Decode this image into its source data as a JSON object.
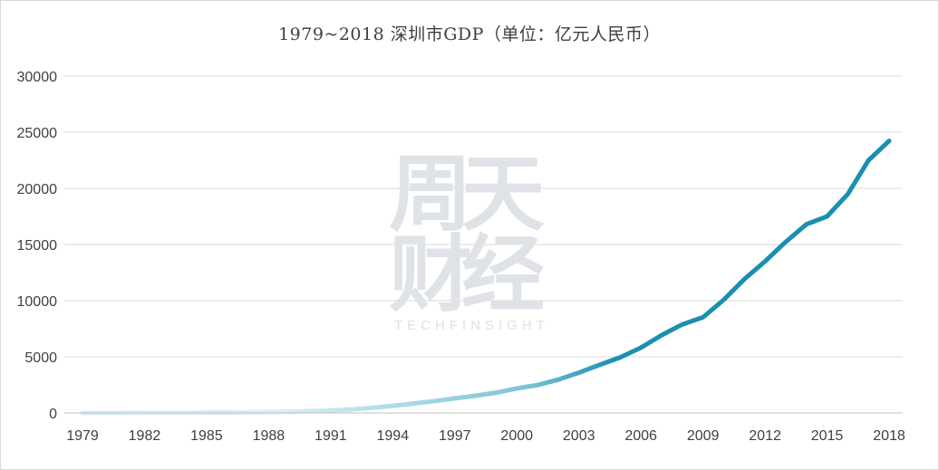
{
  "chart_data": {
    "type": "line",
    "title": "1979~2018 深圳市GDP（单位：亿元人民币）",
    "x": [
      1979,
      1980,
      1981,
      1982,
      1983,
      1984,
      1985,
      1986,
      1987,
      1988,
      1989,
      1990,
      1991,
      1992,
      1993,
      1994,
      1995,
      1996,
      1997,
      1998,
      1999,
      2000,
      2001,
      2002,
      2003,
      2004,
      2005,
      2006,
      2007,
      2008,
      2009,
      2010,
      2011,
      2012,
      2013,
      2014,
      2015,
      2016,
      2017,
      2018
    ],
    "series": [
      {
        "values": [
          2,
          3,
          5,
          8,
          13,
          23,
          39,
          42,
          56,
          87,
          116,
          172,
          237,
          317,
          453,
          635,
          842,
          1050,
          1297,
          1535,
          1804,
          2187,
          2482,
          2969,
          3585,
          4282,
          4951,
          5814,
          6925,
          7887,
          8516,
          10069,
          11922,
          13496,
          15235,
          16795,
          17503,
          19493,
          22490,
          24222
        ],
        "color_start": "#d8eef4",
        "color_end": "#1a8fb0"
      }
    ],
    "x_ticks": [
      "1979",
      "1982",
      "1985",
      "1988",
      "1991",
      "1994",
      "1997",
      "2000",
      "2003",
      "2006",
      "2009",
      "2012",
      "2015",
      "2018"
    ],
    "y_ticks": [
      0,
      5000,
      10000,
      15000,
      20000,
      25000,
      30000
    ],
    "ylim": [
      0,
      30000
    ],
    "xlabel": "",
    "ylabel": "",
    "grid": true,
    "legend": "none"
  },
  "watermark": {
    "chars": [
      "周",
      "天",
      "财",
      "经"
    ],
    "subtitle": "TECHFINSIGHT"
  }
}
